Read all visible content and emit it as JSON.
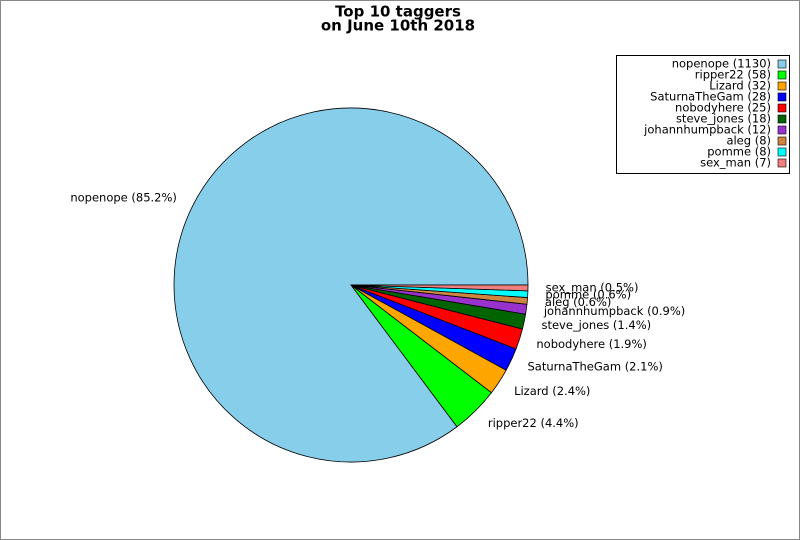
{
  "chart_data": {
    "type": "pie",
    "title": "Top 10 taggers",
    "subtitle": "on June 10th 2018",
    "categories": [
      "nopenope",
      "ripper22",
      "Lizard",
      "SaturnaTheGam",
      "nobodyhere",
      "steve_jones",
      "johannhumpback",
      "aleg",
      "pomme",
      "sex_man"
    ],
    "values": [
      1130,
      58,
      32,
      28,
      25,
      18,
      12,
      8,
      8,
      7
    ],
    "value_labels": [
      "nopenope (1130)",
      "ripper22 (58)",
      "Lizard (32)",
      "SaturnaTheGam (28)",
      "nobodyhere (25)",
      "steve_jones (18)",
      "johannhumpback (12)",
      "aleg (8)",
      "pomme (8)",
      "sex_man (7)"
    ],
    "percent_labels": [
      "nopenope (85.2%)",
      "ripper22 (4.4%)",
      "Lizard (2.4%)",
      "SaturnaTheGam (2.1%)",
      "nobodyhere (1.9%)",
      "steve_jones (1.4%)",
      "johannhumpback (0.9%)",
      "aleg (0.6%)",
      "pomme (0.6%)",
      "sex_man (0.5%)"
    ],
    "colors": [
      "#87ceeb",
      "#00ff00",
      "#ffa500",
      "#0000ff",
      "#ff0000",
      "#006400",
      "#9932cc",
      "#cd853f",
      "#00ffff",
      "#f08080"
    ],
    "legend": "upper right"
  }
}
